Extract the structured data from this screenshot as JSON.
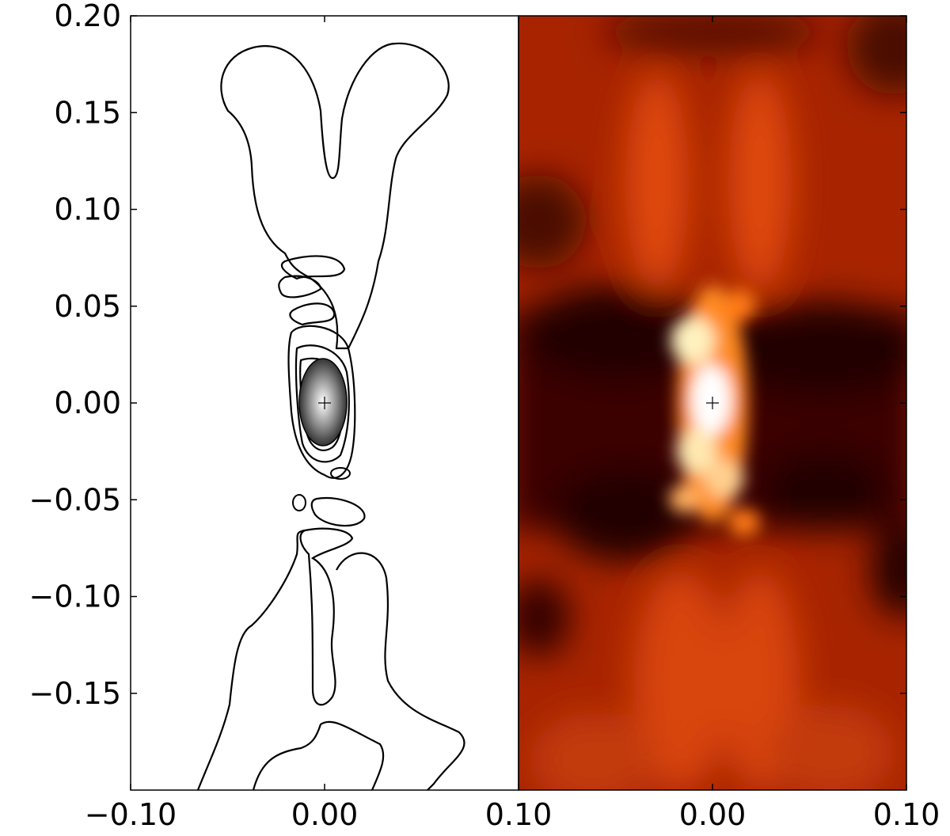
{
  "chart_data": [
    {
      "type": "contour",
      "xlim": [
        -0.1,
        0.1
      ],
      "xticks": [
        {
          "value": -0.1,
          "label": "−0.10"
        },
        {
          "value": 0,
          "label": "0.00"
        },
        {
          "value": 0.1,
          "label": "0.10"
        }
      ],
      "ylim": [
        -0.2,
        0.2
      ],
      "yticks": [
        {
          "value": -0.15,
          "label": "−0.15"
        },
        {
          "value": -0.1,
          "label": "−0.10"
        },
        {
          "value": -0.05,
          "label": "−0.05"
        },
        {
          "value": 0,
          "label": "0.00"
        },
        {
          "value": 0.05,
          "label": "0.05"
        },
        {
          "value": 0.1,
          "label": "0.10"
        },
        {
          "value": 0.15,
          "label": "0.15"
        },
        {
          "value": 0.2,
          "label": "0.20"
        }
      ]
    },
    {
      "type": "image",
      "xlim": [
        -0.1,
        0.1
      ],
      "xticks": [
        {
          "value": 0,
          "label": "0.00"
        },
        {
          "value": 0.1,
          "label": "0.10"
        }
      ],
      "ylim": [
        -0.2,
        0.2
      ]
    }
  ]
}
